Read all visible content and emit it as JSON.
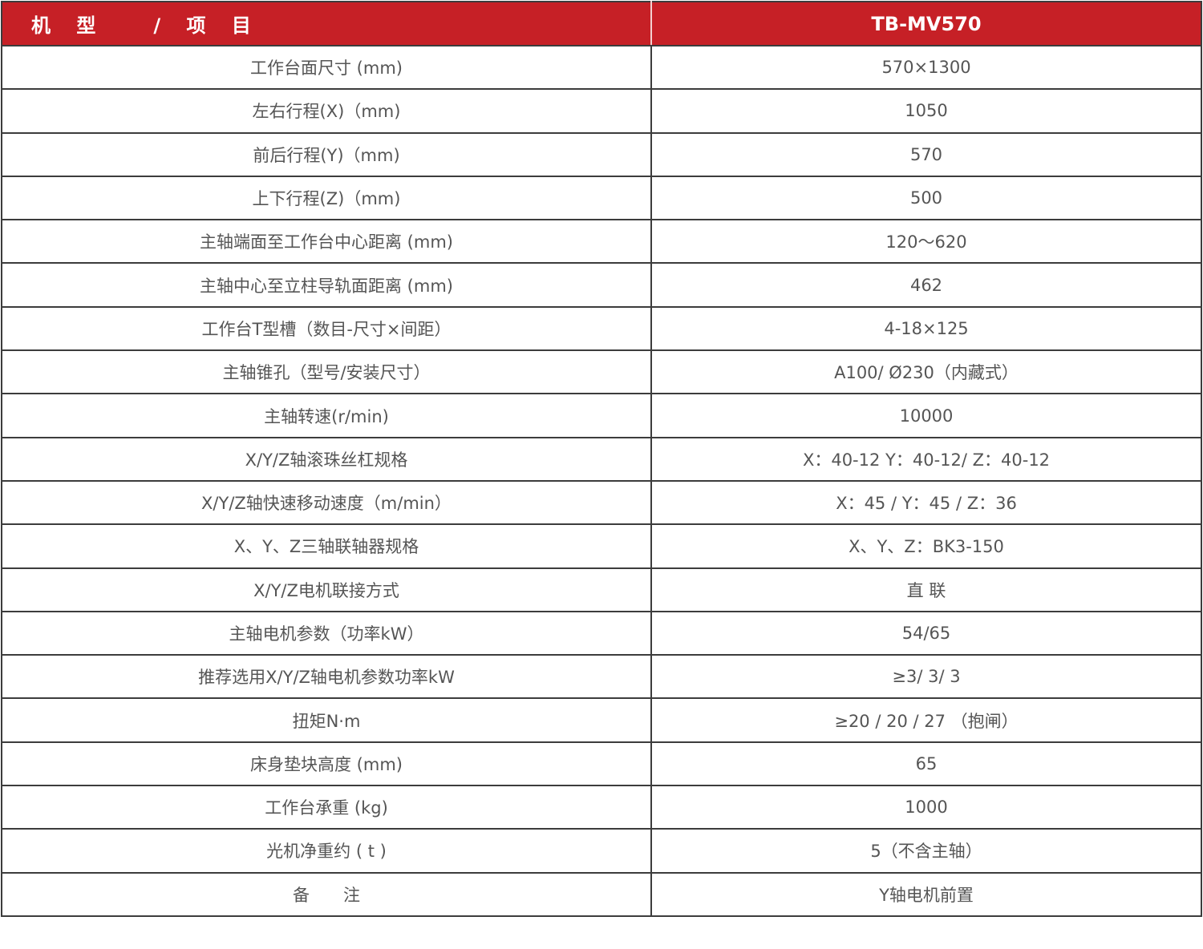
{
  "colors": {
    "header_bg": "#c62026",
    "header_text": "#ffffff",
    "body_text": "#555555",
    "border": "#3c3c3c"
  },
  "header": {
    "item_label": "机　 型　　　/　 项　 目",
    "model": "TB-MV570"
  },
  "rows": [
    {
      "item": "工作台面尺寸 (mm)",
      "value": "570×1300"
    },
    {
      "item": "左右行程(X)（mm)",
      "value": "1050"
    },
    {
      "item": "前后行程(Y)（mm)",
      "value": "570"
    },
    {
      "item": "上下行程(Z)（mm)",
      "value": "500"
    },
    {
      "item": "主轴端面至工作台中心距离 (mm)",
      "value": "120～620"
    },
    {
      "item": "主轴中心至立柱导轨面距离 (mm)",
      "value": "462"
    },
    {
      "item": "工作台T型槽（数目-尺寸×间距）",
      "value": "4-18×125"
    },
    {
      "item": "主轴锥孔（型号/安装尺寸）",
      "value": "A100/ Ø230（内藏式）"
    },
    {
      "item": "主轴转速(r/min)",
      "value": "10000"
    },
    {
      "item": "X/Y/Z轴滚珠丝杠规格",
      "value": "X：40-12 Y：40-12/ Z：40-12"
    },
    {
      "item": "X/Y/Z轴快速移动速度（m/min）",
      "value": "X：45 / Y：45 / Z：36"
    },
    {
      "item": "X、Y、Z三轴联轴器规格",
      "value": "X、Y、Z：BK3-150"
    },
    {
      "item": "X/Y/Z电机联接方式",
      "value": "直 联"
    },
    {
      "item": "主轴电机参数（功率kW）",
      "value": "54/65"
    },
    {
      "item": "推荐选用X/Y/Z轴电机参数功率kW",
      "value": "≥3/ 3/ 3"
    },
    {
      "item": "扭矩N·m",
      "value": "≥20 / 20 / 27 （抱闸）"
    },
    {
      "item": "床身垫块高度 (mm)",
      "value": "65"
    },
    {
      "item": "工作台承重 (kg)",
      "value": "1000"
    },
    {
      "item": "光机净重约 ( t )",
      "value": "5（不含主轴）"
    },
    {
      "item": "备　　注",
      "value": "Y轴电机前置"
    }
  ]
}
